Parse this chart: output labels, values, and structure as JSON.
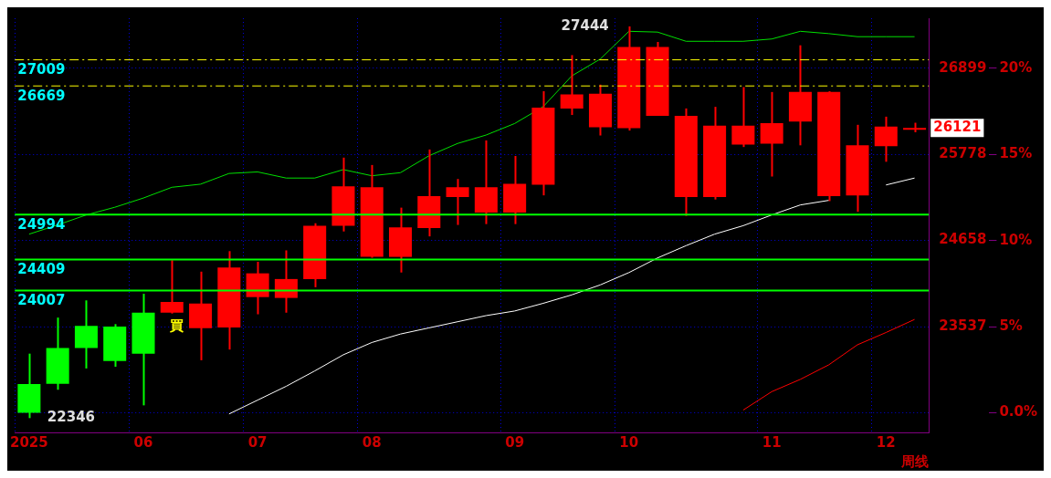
{
  "chart_data": {
    "type": "candlestick",
    "categories": [
      "2025",
      null,
      null,
      null,
      "06",
      null,
      null,
      null,
      "07",
      null,
      null,
      null,
      "08",
      null,
      null,
      null,
      null,
      "09",
      null,
      null,
      null,
      "10",
      null,
      null,
      null,
      null,
      "11",
      null,
      null,
      null,
      "12",
      null
    ],
    "ohlc": [
      [
        22790,
        23185,
        22346,
        22416
      ],
      [
        23259,
        23654,
        22715,
        22793
      ],
      [
        23547,
        23878,
        22992,
        23259
      ],
      [
        23537,
        23569,
        23014,
        23089
      ],
      [
        23718,
        23964,
        22512,
        23185
      ],
      [
        23718,
        24401,
        23707,
        23857
      ],
      [
        23515,
        24252,
        23099,
        23836
      ],
      [
        23526,
        24519,
        23238,
        24305
      ],
      [
        23921,
        24380,
        23697,
        24230
      ],
      [
        23910,
        24529,
        23718,
        24156
      ],
      [
        24156,
        24882,
        24049,
        24850
      ],
      [
        24850,
        25736,
        24775,
        25362
      ],
      [
        24444,
        25640,
        24433,
        25351
      ],
      [
        24444,
        25085,
        24241,
        24828
      ],
      [
        24818,
        25842,
        24711,
        25234
      ],
      [
        25223,
        25458,
        24860,
        25351
      ],
      [
        25020,
        25960,
        24871,
        25351
      ],
      [
        25020,
        25757,
        24871,
        25394
      ],
      [
        25383,
        26600,
        25245,
        26387
      ],
      [
        26376,
        27070,
        26291,
        26558
      ],
      [
        26131,
        26686,
        26024,
        26568
      ],
      [
        26120,
        27444,
        26088,
        27177
      ],
      [
        26280,
        27241,
        26280,
        27177
      ],
      [
        25223,
        26376,
        24978,
        26280
      ],
      [
        25223,
        26397,
        25191,
        26152
      ],
      [
        25906,
        26654,
        25874,
        26152
      ],
      [
        25917,
        26590,
        25490,
        26184
      ],
      [
        26205,
        27198,
        25896,
        26590
      ],
      [
        25234,
        26600,
        25170,
        26590
      ],
      [
        25245,
        26163,
        25031,
        25896
      ],
      [
        25885,
        26269,
        25682,
        26141
      ],
      [
        26100,
        26190,
        26066,
        26121
      ]
    ],
    "colors": [
      "#00ff00",
      "#00ff00",
      "#00ff00",
      "#00ff00",
      "#00ff00",
      "#ff0000",
      "#ff0000",
      "#ff0000",
      "#ff0000",
      "#ff0000",
      "#ff0000",
      "#ff0000",
      "#ff0000",
      "#ff0000",
      "#ff0000",
      "#ff0000",
      "#ff0000",
      "#ff0000",
      "#ff0000",
      "#ff0000",
      "#ff0000",
      "#ff0000",
      "#ff0000",
      "#ff0000",
      "#ff0000",
      "#ff0000",
      "#ff0000",
      "#ff0000",
      "#ff0000",
      "#ff0000",
      "#ff0000",
      "#ff0000"
    ],
    "series": [
      {
        "type": "line",
        "color": "#00e000",
        "values": [
          24740,
          24860,
          24990,
          25090,
          25210,
          25350,
          25390,
          25530,
          25550,
          25470,
          25470,
          25580,
          25500,
          25540,
          25760,
          25920,
          26030,
          26180,
          26400,
          26800,
          27020,
          27380,
          27370,
          27250,
          27250,
          27250,
          27280,
          27380,
          27350,
          27310,
          27310,
          27310
        ]
      },
      {
        "type": "line",
        "color": "#ffffff",
        "values": [
          null,
          null,
          null,
          null,
          null,
          null,
          null,
          22400,
          22580,
          22760,
          22960,
          23170,
          23330,
          23440,
          23520,
          23600,
          23680,
          23740,
          23840,
          23950,
          24080,
          24240,
          24430,
          24590,
          24740,
          24850,
          24990,
          25120,
          25180,
          null,
          25380,
          25470
        ]
      },
      {
        "type": "line",
        "color": "#ff0000",
        "values": [
          null,
          null,
          null,
          null,
          null,
          null,
          null,
          null,
          null,
          null,
          null,
          null,
          null,
          null,
          null,
          null,
          null,
          null,
          null,
          null,
          null,
          null,
          null,
          null,
          null,
          22450,
          22690,
          22850,
          23040,
          23300,
          23460,
          23630
        ]
      }
    ],
    "ylim": [
      22160,
      27550
    ],
    "yticks": [
      23537,
      24658,
      25778,
      26899
    ],
    "y2lim": [
      -1.142,
      22.903
    ],
    "y2ticks": [
      {
        "value": 0,
        "label": "0.0%"
      },
      {
        "value": 5,
        "label": "5%"
      },
      {
        "value": 10,
        "label": "10%"
      },
      {
        "value": 15,
        "label": "15%"
      },
      {
        "value": 20,
        "label": "20%"
      }
    ],
    "xlabel": "周线",
    "ref_lines": [
      {
        "axis": "y",
        "value": 27009,
        "label": "27009",
        "color": "#ffff00",
        "line_style": "dashed"
      },
      {
        "axis": "y",
        "value": 26669,
        "label": "26669",
        "color": "#ffff00",
        "line_style": "dashed"
      },
      {
        "axis": "y",
        "value": 24994,
        "label": "24994",
        "color": "#00ff00",
        "line_style": "solid"
      },
      {
        "axis": "y",
        "value": 24409,
        "label": "24409",
        "color": "#00ff00",
        "line_style": "solid"
      },
      {
        "axis": "y",
        "value": 24007,
        "label": "24007",
        "color": "#00ff00",
        "line_style": "solid"
      }
    ],
    "annotations": [
      "27444",
      "22346",
      "26121",
      "買"
    ],
    "grid": true,
    "legend": false
  }
}
